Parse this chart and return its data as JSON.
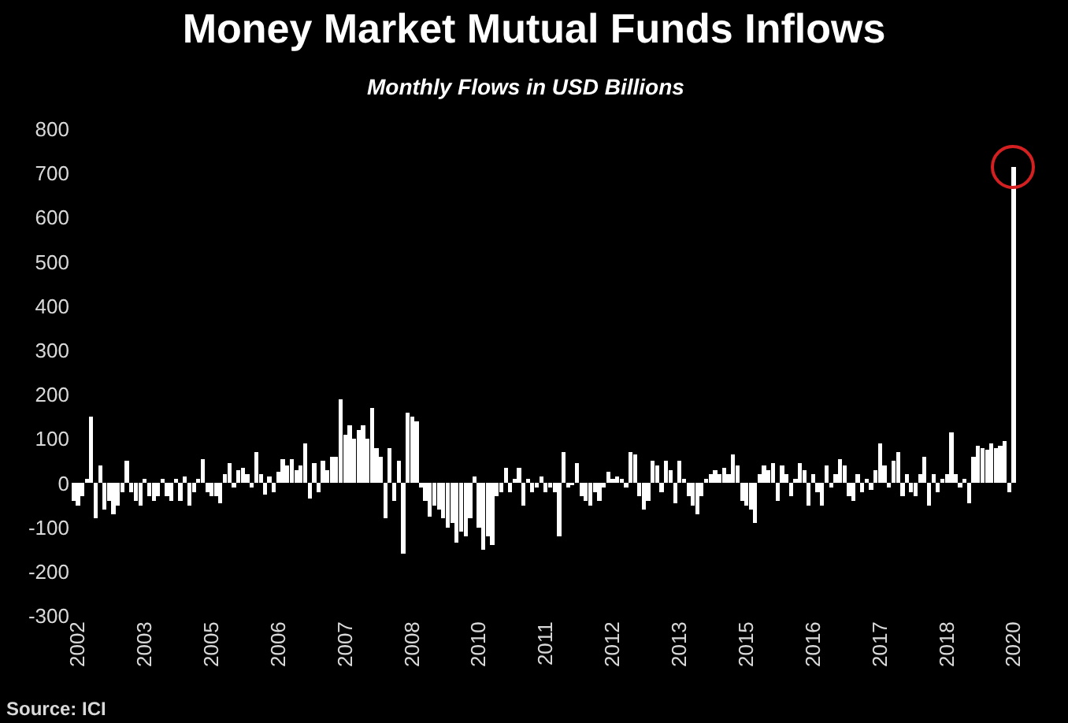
{
  "chart_data": {
    "type": "bar",
    "title": "Money Market Mutual Funds Inflows",
    "subtitle": "Monthly Flows in USD Billions",
    "annotations": [
      "Source: ICI"
    ],
    "color": "#ffffff",
    "x": [
      "2002-08",
      "2002-09",
      "2002-10",
      "2002-11",
      "2002-12",
      "2003-01",
      "2003-02",
      "2003-03",
      "2003-04",
      "2003-05",
      "2003-06",
      "2003-07",
      "2003-08",
      "2003-09",
      "2003-10",
      "2003-11",
      "2003-12",
      "2004-01",
      "2004-02",
      "2004-03",
      "2004-04",
      "2004-05",
      "2004-06",
      "2004-07",
      "2004-08",
      "2004-09",
      "2004-10",
      "2004-11",
      "2004-12",
      "2005-01",
      "2005-02",
      "2005-03",
      "2005-04",
      "2005-05",
      "2005-06",
      "2005-07",
      "2005-08",
      "2005-09",
      "2005-10",
      "2005-11",
      "2005-12",
      "2006-01",
      "2006-02",
      "2006-03",
      "2006-04",
      "2006-05",
      "2006-06",
      "2006-07",
      "2006-08",
      "2006-09",
      "2006-10",
      "2006-11",
      "2006-12",
      "2007-01",
      "2007-02",
      "2007-03",
      "2007-04",
      "2007-05",
      "2007-06",
      "2007-07",
      "2007-08",
      "2007-09",
      "2007-10",
      "2007-11",
      "2007-12",
      "2008-01",
      "2008-02",
      "2008-03",
      "2008-04",
      "2008-05",
      "2008-06",
      "2008-07",
      "2008-08",
      "2008-09",
      "2008-10",
      "2008-11",
      "2008-12",
      "2009-01",
      "2009-02",
      "2009-03",
      "2009-04",
      "2009-05",
      "2009-06",
      "2009-07",
      "2009-08",
      "2009-09",
      "2009-10",
      "2009-11",
      "2009-12",
      "2010-01",
      "2010-02",
      "2010-03",
      "2010-04",
      "2010-05",
      "2010-06",
      "2010-07",
      "2010-08",
      "2010-09",
      "2010-10",
      "2010-11",
      "2010-12",
      "2011-01",
      "2011-02",
      "2011-03",
      "2011-04",
      "2011-05",
      "2011-06",
      "2011-07",
      "2011-08",
      "2011-09",
      "2011-10",
      "2011-11",
      "2011-12",
      "2012-01",
      "2012-02",
      "2012-03",
      "2012-04",
      "2012-05",
      "2012-06",
      "2012-07",
      "2012-08",
      "2012-09",
      "2012-10",
      "2012-11",
      "2012-12",
      "2013-01",
      "2013-02",
      "2013-03",
      "2013-04",
      "2013-05",
      "2013-06",
      "2013-07",
      "2013-08",
      "2013-09",
      "2013-10",
      "2013-11",
      "2013-12",
      "2014-01",
      "2014-02",
      "2014-03",
      "2014-04",
      "2014-05",
      "2014-06",
      "2014-07",
      "2014-08",
      "2014-09",
      "2014-10",
      "2014-11",
      "2014-12",
      "2015-01",
      "2015-02",
      "2015-03",
      "2015-04",
      "2015-05",
      "2015-06",
      "2015-07",
      "2015-08",
      "2015-09",
      "2015-10",
      "2015-11",
      "2015-12",
      "2016-01",
      "2016-02",
      "2016-03",
      "2016-04",
      "2016-05",
      "2016-06",
      "2016-07",
      "2016-08",
      "2016-09",
      "2016-10",
      "2016-11",
      "2016-12",
      "2017-01",
      "2017-02",
      "2017-03",
      "2017-04",
      "2017-05",
      "2017-06",
      "2017-07",
      "2017-08",
      "2017-09",
      "2017-10",
      "2017-11",
      "2017-12",
      "2018-01",
      "2018-02",
      "2018-03",
      "2018-04",
      "2018-05",
      "2018-06",
      "2018-07",
      "2018-08",
      "2018-09",
      "2018-10",
      "2018-11",
      "2018-12",
      "2019-01",
      "2019-02",
      "2019-03",
      "2019-04",
      "2019-05",
      "2019-06",
      "2019-07",
      "2019-08",
      "2019-09",
      "2019-10",
      "2019-11",
      "2019-12",
      "2020-01",
      "2020-02",
      "2020-03"
    ],
    "values": [
      -40,
      -50,
      -30,
      10,
      150,
      -80,
      40,
      -60,
      -40,
      -70,
      -50,
      -20,
      50,
      -20,
      -40,
      -50,
      10,
      -30,
      -40,
      -30,
      10,
      -30,
      -40,
      10,
      -40,
      15,
      -50,
      -20,
      10,
      55,
      -20,
      -30,
      -30,
      -45,
      20,
      45,
      -10,
      30,
      35,
      20,
      -10,
      70,
      20,
      -25,
      15,
      -20,
      25,
      55,
      40,
      55,
      30,
      40,
      90,
      -35,
      45,
      -20,
      50,
      30,
      60,
      60,
      190,
      110,
      130,
      100,
      120,
      130,
      100,
      170,
      80,
      60,
      -80,
      80,
      -40,
      50,
      -160,
      160,
      150,
      140,
      -10,
      -40,
      -75,
      -50,
      -60,
      -80,
      -100,
      -90,
      -135,
      -110,
      -120,
      -80,
      15,
      -100,
      -150,
      -120,
      -140,
      -30,
      -20,
      35,
      -20,
      10,
      35,
      -50,
      10,
      -20,
      -10,
      15,
      -20,
      -10,
      -20,
      -120,
      70,
      -10,
      -5,
      45,
      -30,
      -40,
      -50,
      -20,
      -40,
      -10,
      25,
      10,
      15,
      10,
      -10,
      70,
      65,
      -30,
      -60,
      -40,
      50,
      40,
      -20,
      50,
      30,
      -45,
      50,
      10,
      -30,
      -50,
      -70,
      -30,
      10,
      20,
      30,
      20,
      35,
      20,
      65,
      40,
      -40,
      -50,
      -60,
      -90,
      20,
      40,
      30,
      45,
      -40,
      40,
      20,
      -30,
      10,
      45,
      30,
      -50,
      20,
      -20,
      -50,
      40,
      -10,
      20,
      55,
      40,
      -30,
      -40,
      20,
      -20,
      10,
      -15,
      30,
      90,
      40,
      -10,
      50,
      70,
      -30,
      20,
      -20,
      -30,
      20,
      60,
      -50,
      20,
      -20,
      10,
      20,
      115,
      20,
      -10,
      10,
      -45,
      60,
      85,
      80,
      75,
      90,
      80,
      85,
      95,
      -20,
      715
    ],
    "xlim": [
      "2002-07-15",
      "2020-05-10"
    ],
    "xticks": [
      {
        "value": "2002-09",
        "label": "2002"
      },
      {
        "value": "2003-12",
        "label": "2003"
      },
      {
        "value": "2005-03",
        "label": "2005"
      },
      {
        "value": "2006-06",
        "label": "2006"
      },
      {
        "value": "2007-09",
        "label": "2007"
      },
      {
        "value": "2008-12",
        "label": "2008"
      },
      {
        "value": "2010-03",
        "label": "2010"
      },
      {
        "value": "2011-06",
        "label": "2011"
      },
      {
        "value": "2012-09",
        "label": "2012"
      },
      {
        "value": "2013-12",
        "label": "2013"
      },
      {
        "value": "2015-03",
        "label": "2015"
      },
      {
        "value": "2016-06",
        "label": "2016"
      },
      {
        "value": "2017-09",
        "label": "2017"
      },
      {
        "value": "2018-12",
        "label": "2018"
      },
      {
        "value": "2020-03",
        "label": "2020"
      }
    ],
    "ylim": [
      -300,
      800
    ],
    "yticks": [
      -300,
      -200,
      -100,
      0,
      100,
      200,
      300,
      400,
      500,
      600,
      700,
      800
    ]
  }
}
